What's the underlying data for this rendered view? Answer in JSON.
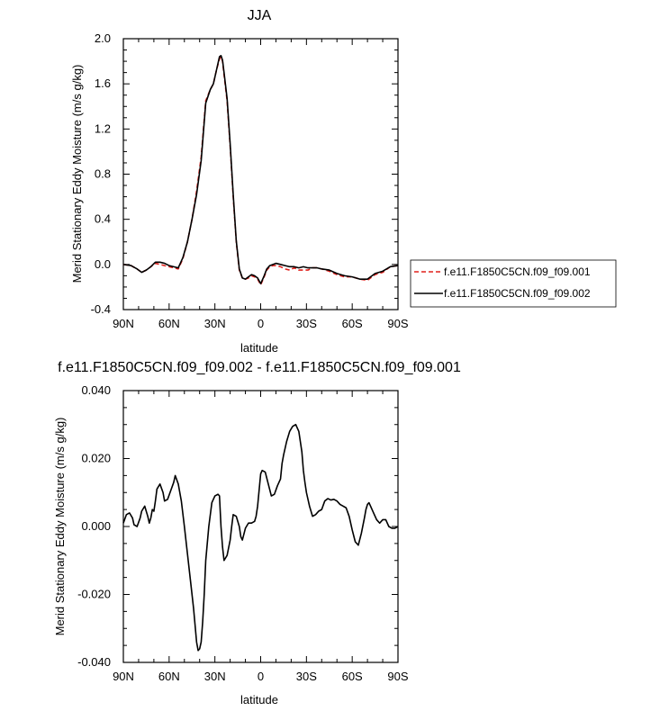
{
  "chart_data": [
    {
      "type": "line",
      "title": "JJA",
      "xlabel": "latitude",
      "ylabel": "Merid Stationary Eddy Moisture (m/s g/kg)",
      "xlim": [
        90,
        -90
      ],
      "ylim": [
        -0.4,
        2.0
      ],
      "x_ticks": [
        90,
        60,
        30,
        0,
        -30,
        -60,
        -90
      ],
      "x_tick_labels": [
        "90N",
        "60N",
        "30N",
        "0",
        "30S",
        "60S",
        "90S"
      ],
      "y_ticks": [
        -0.4,
        0.0,
        0.4,
        0.8,
        1.2,
        1.6,
        2.0
      ],
      "y_tick_labels": [
        "-0.4",
        "0.0",
        "0.4",
        "0.8",
        "1.2",
        "1.6",
        "2.0"
      ],
      "legend_position": "right",
      "series": [
        {
          "name": "f.e11.F1850C5CN.f09_f09.001",
          "color": "#e0201b",
          "style": "dashed",
          "x": [
            90,
            85,
            81,
            78,
            75,
            72,
            69,
            66,
            63,
            60,
            57,
            54,
            51,
            48,
            45,
            42,
            39,
            36,
            33,
            31,
            29,
            27,
            26,
            25,
            24,
            22,
            20,
            18,
            16,
            14,
            12,
            10,
            8,
            6,
            4,
            2,
            0,
            -2,
            -4,
            -6,
            -8,
            -10,
            -13,
            -16,
            -19,
            -22,
            -25,
            -28,
            -31,
            -34,
            -37,
            -40,
            -45,
            -50,
            -55,
            -60,
            -65,
            -70,
            -72,
            -75,
            -80,
            -85,
            -90
          ],
          "values": [
            0.0,
            -0.01,
            -0.04,
            -0.07,
            -0.05,
            -0.02,
            0.01,
            0.0,
            -0.01,
            -0.02,
            -0.03,
            -0.04,
            0.05,
            0.2,
            0.4,
            0.65,
            0.95,
            1.45,
            1.55,
            1.6,
            1.72,
            1.82,
            1.84,
            1.8,
            1.68,
            1.45,
            1.05,
            0.6,
            0.2,
            -0.05,
            -0.12,
            -0.13,
            -0.12,
            -0.1,
            -0.11,
            -0.13,
            -0.18,
            -0.12,
            -0.05,
            -0.02,
            -0.01,
            -0.01,
            -0.02,
            -0.04,
            -0.05,
            -0.03,
            -0.05,
            -0.05,
            -0.05,
            -0.03,
            -0.03,
            -0.04,
            -0.06,
            -0.09,
            -0.11,
            -0.11,
            -0.13,
            -0.14,
            -0.12,
            -0.09,
            -0.07,
            -0.02,
            -0.01
          ]
        },
        {
          "name": "f.e11.F1850C5CN.f09_f09.002",
          "color": "#000000",
          "style": "solid",
          "x": [
            90,
            85,
            81,
            78,
            75,
            72,
            69,
            66,
            63,
            60,
            57,
            54,
            51,
            48,
            45,
            42,
            39,
            36,
            33,
            31,
            29,
            27,
            26,
            25,
            24,
            22,
            20,
            18,
            16,
            14,
            12,
            10,
            8,
            6,
            4,
            2,
            0,
            -2,
            -4,
            -6,
            -8,
            -10,
            -13,
            -16,
            -19,
            -22,
            -25,
            -28,
            -31,
            -34,
            -37,
            -40,
            -45,
            -50,
            -55,
            -60,
            -65,
            -70,
            -72,
            -75,
            -80,
            -85,
            -90
          ],
          "values": [
            0.0,
            -0.01,
            -0.04,
            -0.07,
            -0.05,
            -0.02,
            0.02,
            0.02,
            0.01,
            -0.01,
            -0.02,
            -0.03,
            0.06,
            0.2,
            0.4,
            0.62,
            0.92,
            1.43,
            1.55,
            1.6,
            1.72,
            1.84,
            1.85,
            1.81,
            1.7,
            1.47,
            1.07,
            0.62,
            0.21,
            -0.04,
            -0.12,
            -0.13,
            -0.11,
            -0.09,
            -0.1,
            -0.12,
            -0.17,
            -0.11,
            -0.04,
            -0.01,
            0.0,
            0.01,
            0.0,
            -0.01,
            -0.02,
            -0.02,
            -0.03,
            -0.02,
            -0.03,
            -0.03,
            -0.03,
            -0.04,
            -0.05,
            -0.08,
            -0.1,
            -0.11,
            -0.13,
            -0.13,
            -0.11,
            -0.08,
            -0.06,
            -0.02,
            -0.01
          ]
        }
      ]
    },
    {
      "type": "line",
      "title": "f.e11.F1850C5CN.f09_f09.002 - f.e11.F1850C5CN.f09_f09.001",
      "xlabel": "latitude",
      "ylabel": "Merid Stationary Eddy Moisture (m/s g/kg)",
      "xlim": [
        90,
        -90
      ],
      "ylim": [
        -0.04,
        0.04
      ],
      "x_ticks": [
        90,
        60,
        30,
        0,
        -30,
        -60,
        -90
      ],
      "x_tick_labels": [
        "90N",
        "60N",
        "30N",
        "0",
        "30S",
        "60S",
        "90S"
      ],
      "y_ticks": [
        -0.04,
        -0.02,
        0.0,
        0.02,
        0.04
      ],
      "y_tick_labels": [
        "-0.040",
        "-0.020",
        "0.000",
        "0.020",
        "0.040"
      ],
      "series": [
        {
          "color": "#000000",
          "style": "solid",
          "x": [
            90,
            88,
            86,
            84,
            83,
            81,
            79,
            78,
            76,
            74,
            73,
            72,
            71,
            70,
            69,
            68,
            66,
            64,
            63,
            61,
            59,
            57,
            56,
            54,
            52,
            50,
            48,
            46,
            44,
            43,
            42,
            41,
            40,
            39,
            38,
            37,
            36,
            34,
            32,
            30,
            28,
            27,
            26,
            25,
            24,
            22,
            20,
            19,
            18,
            16,
            14,
            13,
            12,
            10,
            8,
            6,
            4,
            3,
            2,
            0,
            -1,
            -3,
            -5,
            -7,
            -9,
            -11,
            -12,
            -13,
            -14,
            -15,
            -17,
            -19,
            -21,
            -23,
            -25,
            -27,
            -28,
            -29,
            -30,
            -32,
            -34,
            -36,
            -38,
            -40,
            -42,
            -44,
            -46,
            -48,
            -50,
            -52,
            -54,
            -56,
            -58,
            -60,
            -62,
            -64,
            -66,
            -68,
            -69,
            -70,
            -71,
            -72,
            -74,
            -76,
            -78,
            -80,
            -82,
            -84,
            -86,
            -88,
            -90
          ],
          "values": [
            0.001,
            0.0035,
            0.004,
            0.0025,
            0.0005,
            0.0,
            0.0025,
            0.0045,
            0.006,
            0.003,
            0.001,
            0.0025,
            0.005,
            0.0045,
            0.0075,
            0.011,
            0.0125,
            0.01,
            0.0075,
            0.008,
            0.0105,
            0.013,
            0.015,
            0.0125,
            0.0075,
            0.0,
            -0.008,
            -0.016,
            -0.024,
            -0.029,
            -0.034,
            -0.0365,
            -0.036,
            -0.034,
            -0.028,
            -0.02,
            -0.01,
            0.0,
            0.007,
            0.009,
            0.0095,
            0.009,
            0.0,
            -0.006,
            -0.01,
            -0.0085,
            -0.004,
            0.0,
            0.0035,
            0.003,
            0.0,
            -0.003,
            -0.004,
            -0.0005,
            0.001,
            0.001,
            0.0015,
            0.003,
            0.006,
            0.0155,
            0.0165,
            0.016,
            0.0125,
            0.009,
            0.0095,
            0.012,
            0.013,
            0.014,
            0.0185,
            0.021,
            0.025,
            0.028,
            0.0295,
            0.03,
            0.028,
            0.022,
            0.0165,
            0.013,
            0.01,
            0.006,
            0.003,
            0.0035,
            0.0045,
            0.005,
            0.0075,
            0.0082,
            0.0078,
            0.008,
            0.0075,
            0.0065,
            0.006,
            0.0055,
            0.003,
            -0.001,
            -0.0045,
            -0.0055,
            -0.002,
            0.0025,
            0.005,
            0.0065,
            0.007,
            0.006,
            0.004,
            0.002,
            0.001,
            0.002,
            0.002,
            0.0,
            -0.0005,
            -0.0005,
            0.0
          ]
        }
      ]
    }
  ]
}
